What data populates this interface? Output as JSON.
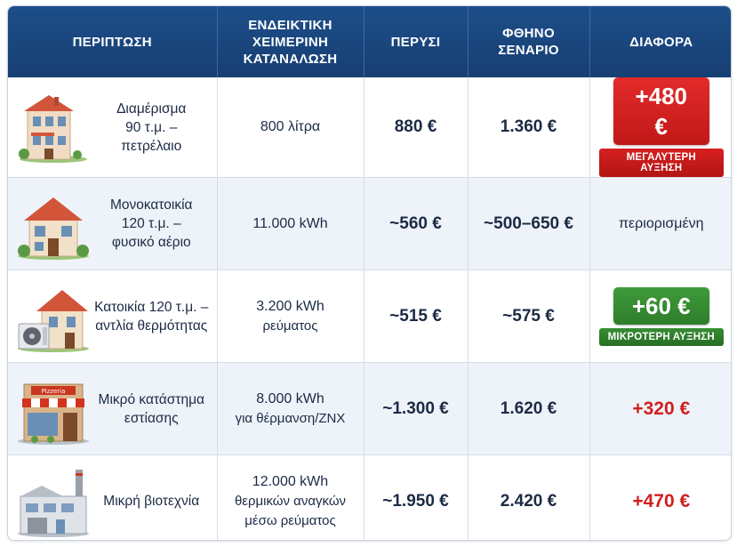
{
  "headers": [
    "ΠΕΡΙΠΤΩΣΗ",
    "ΕΝΔΕΙΚΤΙΚΗ ΧΕΙΜΕΡΙΝΗ ΚΑΤΑΝΑΛΩΣΗ",
    "ΠΕΡΥΣΙ",
    "ΦΘΗΝΟ ΣΕΝΑΡΙΟ",
    "ΔΙΑΦΟΡΑ"
  ],
  "header_lines": {
    "consumption": [
      "ΕΝΔΕΙΚΤΙΚΗ",
      "ΧΕΙΜΕΡΙΝΗ",
      "ΚΑΤΑΝΑΛΩΣΗ"
    ],
    "cheap": [
      "ΦΘΗΝΟ",
      "ΣΕΝΑΡΙΟ"
    ]
  },
  "rows": [
    {
      "case_lines": [
        "Διαμέρισμα",
        "90 τ.μ. –",
        "πετρέλαιο"
      ],
      "illustration": "apartment-building-icon",
      "consumption_lines": [
        "800 λίτρα"
      ],
      "last_year": "880 €",
      "cheap": "1.360 €",
      "diff": "+480 €",
      "diff_badge": "ΜΕΓΑΛΥΤΕΡΗ ΑΥΞΗΣΗ",
      "diff_style": "red-badge"
    },
    {
      "case_lines": [
        "Μονοκατοικία",
        "120 τ.μ. –",
        "φυσικό αέριο"
      ],
      "illustration": "detached-house-icon",
      "consumption_lines": [
        "11.000 kWh"
      ],
      "last_year": "~560 €",
      "cheap": "~500–650 €",
      "diff": "περιορισμένη",
      "diff_style": "plain"
    },
    {
      "case_lines": [
        "Κατοικία 120 τ.μ. –",
        "αντλία θερμότητας"
      ],
      "illustration": "house-heat-pump-icon",
      "consumption_lines": [
        "3.200 kWh",
        "ρεύματος"
      ],
      "last_year": "~515 €",
      "cheap": "~575 €",
      "diff": "+60 €",
      "diff_badge": "ΜΙΚΡΟΤΕΡΗ ΑΥΞΗΣΗ",
      "diff_style": "green-badge"
    },
    {
      "case_lines": [
        "Μικρό κατάστημα",
        "εστίασης"
      ],
      "illustration": "shop-storefront-icon",
      "shop_sign": "Pizzeria",
      "consumption_lines": [
        "8.000 kWh",
        "για θέρμανση/ΖΝΧ"
      ],
      "last_year": "~1.300 €",
      "cheap": "1.620 €",
      "diff": "+320 €",
      "diff_style": "red-text"
    },
    {
      "case_lines": [
        "Μικρή βιοτεχνία"
      ],
      "illustration": "factory-icon",
      "consumption_lines": [
        "12.000 kWh",
        "θερμικών αναγκών",
        "μέσω ρεύματος"
      ],
      "last_year": "~1.950 €",
      "cheap": "2.420 €",
      "diff": "+470 €",
      "diff_style": "red-text"
    }
  ],
  "colors": {
    "header_bg": "#1d4e89",
    "red": "#d11f1f",
    "green": "#2e7d2b",
    "text": "#1b2a44"
  }
}
